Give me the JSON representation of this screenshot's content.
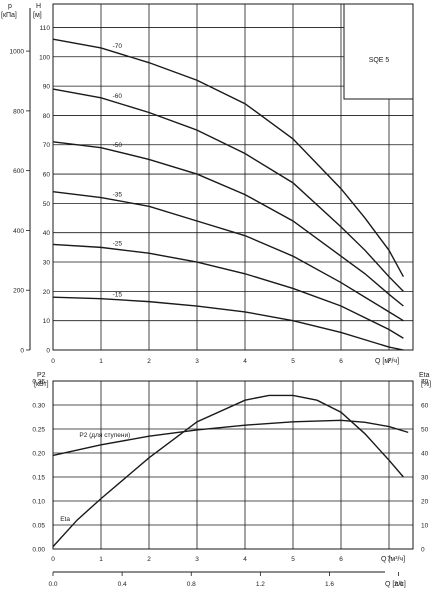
{
  "chart_data": [
    {
      "type": "line",
      "model": "SQE 5",
      "y_label": "H",
      "y_unit": "[м]",
      "y2_label": "p",
      "y2_unit": "[кПа]",
      "x_label": "Q [м³/ч]",
      "xlim": [
        0,
        7.5
      ],
      "ylim": [
        0,
        118
      ],
      "x_ticks": [
        0,
        1,
        2,
        3,
        4,
        5,
        6,
        7
      ],
      "y_ticks": [
        0,
        10,
        20,
        30,
        40,
        50,
        60,
        70,
        80,
        90,
        100,
        110
      ],
      "y2_ticks": [
        0,
        200,
        400,
        600,
        800,
        1000
      ],
      "grid": true,
      "series": [
        {
          "name": "-70",
          "x": [
            0,
            1,
            2,
            3,
            4,
            5,
            6,
            6.5,
            7,
            7.3
          ],
          "y": [
            106,
            103,
            98,
            92,
            84,
            72,
            55,
            45,
            34,
            25
          ]
        },
        {
          "name": "-60",
          "x": [
            0,
            1,
            2,
            3,
            4,
            5,
            6,
            6.5,
            7,
            7.3
          ],
          "y": [
            89,
            86,
            81,
            75,
            67,
            57,
            42,
            34,
            25,
            20
          ]
        },
        {
          "name": "-50",
          "x": [
            0,
            1,
            2,
            3,
            4,
            5,
            6,
            6.5,
            7,
            7.3
          ],
          "y": [
            71,
            69,
            65,
            60,
            53,
            44,
            32,
            26,
            19,
            15
          ]
        },
        {
          "name": "-35",
          "x": [
            0,
            1,
            2,
            3,
            4,
            5,
            6,
            6.5,
            7,
            7.3
          ],
          "y": [
            54,
            52,
            49,
            44,
            39,
            32,
            23,
            18,
            13,
            10
          ]
        },
        {
          "name": "-25",
          "x": [
            0,
            1,
            2,
            3,
            4,
            5,
            6,
            6.5,
            7,
            7.3
          ],
          "y": [
            36,
            35,
            33,
            30,
            26,
            21,
            15,
            11,
            7,
            4
          ]
        },
        {
          "name": "-15",
          "x": [
            0,
            1,
            2,
            3,
            4,
            5,
            6,
            6.5,
            7,
            7.3
          ],
          "y": [
            18,
            17.5,
            16.5,
            15,
            13,
            10,
            6,
            3.5,
            1,
            0
          ]
        }
      ]
    },
    {
      "type": "line",
      "y_label": "P2",
      "y_unit": "[кВт]",
      "y2_label": "Eta",
      "y2_unit": "[%]",
      "x_label": "Q [м³/ч]",
      "x2_label": "Q [л/с]",
      "xlim": [
        0,
        7.5
      ],
      "ylim": [
        0,
        0.35
      ],
      "y2lim": [
        0,
        70
      ],
      "x_ticks": [
        0,
        1,
        2,
        3,
        4,
        5,
        6,
        7
      ],
      "x2_ticks": [
        0.0,
        0.4,
        0.8,
        1.2,
        1.6,
        2.0
      ],
      "y_ticks": [
        0,
        0.05,
        0.1,
        0.15,
        0.2,
        0.25,
        0.3,
        0.35
      ],
      "y_tick_labels": [
        "0.00",
        "0.05",
        "0.10",
        "0.15",
        "0.20",
        "0.25",
        "0.30",
        "0.35"
      ],
      "y2_ticks": [
        0,
        10,
        20,
        30,
        40,
        50,
        60,
        70
      ],
      "grid": true,
      "series": [
        {
          "name": "P2 (для ступени)",
          "axis": "left",
          "x": [
            0,
            1,
            2,
            3,
            4,
            5,
            6,
            6.5,
            7,
            7.4
          ],
          "y": [
            0.195,
            0.217,
            0.235,
            0.248,
            0.258,
            0.265,
            0.268,
            0.264,
            0.255,
            0.243
          ]
        },
        {
          "name": "Eta",
          "axis": "right",
          "x": [
            0,
            0.5,
            1,
            2,
            3,
            4,
            4.5,
            5,
            5.5,
            6,
            6.5,
            7,
            7.3
          ],
          "y": [
            1,
            12,
            21,
            38,
            53,
            62,
            64,
            64,
            62,
            57,
            48,
            37,
            30
          ]
        }
      ]
    }
  ]
}
